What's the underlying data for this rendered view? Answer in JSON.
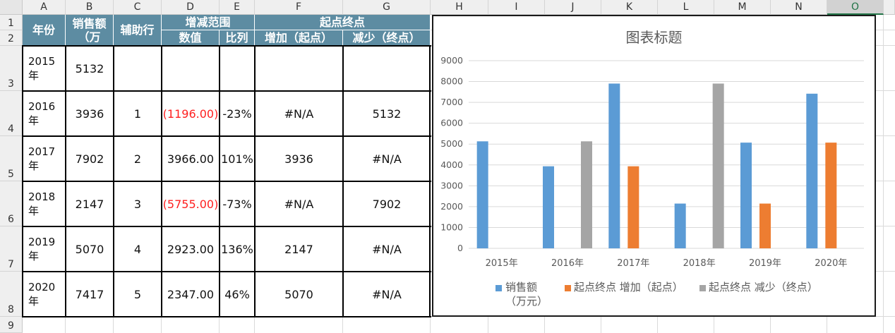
{
  "columns": [
    "A",
    "B",
    "C",
    "D",
    "E",
    "F",
    "G",
    "H",
    "I",
    "J",
    "K",
    "L",
    "M",
    "N",
    "O"
  ],
  "selected_column": "O",
  "rows": [
    "1",
    "2",
    "3",
    "4",
    "5",
    "6",
    "7",
    "8",
    "9"
  ],
  "header": {
    "year": "年份",
    "sales": "销售额（万",
    "helper": "辅助行",
    "range": "增减范围",
    "value": "数值",
    "ratio": "比列",
    "endpoints": "起点终点",
    "increase": "增加（起点）",
    "decrease": "减少（终点）"
  },
  "table": [
    {
      "year": "2015年",
      "sales": "5132",
      "helper": "",
      "value": "",
      "ratio": "",
      "increase": "",
      "decrease": "",
      "value_negative": false
    },
    {
      "year": "2016年",
      "sales": "3936",
      "helper": "1",
      "value": "(1196.00)",
      "ratio": "-23%",
      "increase": "#N/A",
      "decrease": "5132",
      "value_negative": true
    },
    {
      "year": "2017年",
      "sales": "7902",
      "helper": "2",
      "value": "3966.00",
      "ratio": "101%",
      "increase": "3936",
      "decrease": "#N/A",
      "value_negative": false
    },
    {
      "year": "2018年",
      "sales": "2147",
      "helper": "3",
      "value": "(5755.00)",
      "ratio": "-73%",
      "increase": "#N/A",
      "decrease": "7902",
      "value_negative": true
    },
    {
      "year": "2019年",
      "sales": "5070",
      "helper": "4",
      "value": "2923.00",
      "ratio": "136%",
      "increase": "2147",
      "decrease": "#N/A",
      "value_negative": false
    },
    {
      "year": "2020年",
      "sales": "7417",
      "helper": "5",
      "value": "2347.00",
      "ratio": "46%",
      "increase": "5070",
      "decrease": "#N/A",
      "value_negative": false
    }
  ],
  "colors": {
    "header_bg": "#5d8ca2",
    "negative": "#ff2020",
    "series1": "#5b9bd5",
    "series2": "#ed7d31",
    "series3": "#a5a5a5"
  },
  "chart_data": {
    "type": "bar",
    "title": "图表标题",
    "categories": [
      "2015年",
      "2016年",
      "2017年",
      "2018年",
      "2019年",
      "2020年"
    ],
    "ylim": [
      0,
      9000
    ],
    "yticks": [
      "0",
      "1000",
      "2000",
      "3000",
      "4000",
      "5000",
      "6000",
      "7000",
      "8000",
      "9000"
    ],
    "grid": true,
    "legend_position": "bottom",
    "series": [
      {
        "name": "销售额（万元）",
        "color": "#5b9bd5",
        "values": [
          5132,
          3936,
          7902,
          2147,
          5070,
          7417
        ]
      },
      {
        "name": "起点终点 增加（起点）",
        "color": "#ed7d31",
        "values": [
          null,
          null,
          3936,
          null,
          2147,
          5070
        ]
      },
      {
        "name": "起点终点 减少（终点）",
        "color": "#a5a5a5",
        "values": [
          null,
          5132,
          null,
          7902,
          null,
          null
        ]
      }
    ]
  }
}
